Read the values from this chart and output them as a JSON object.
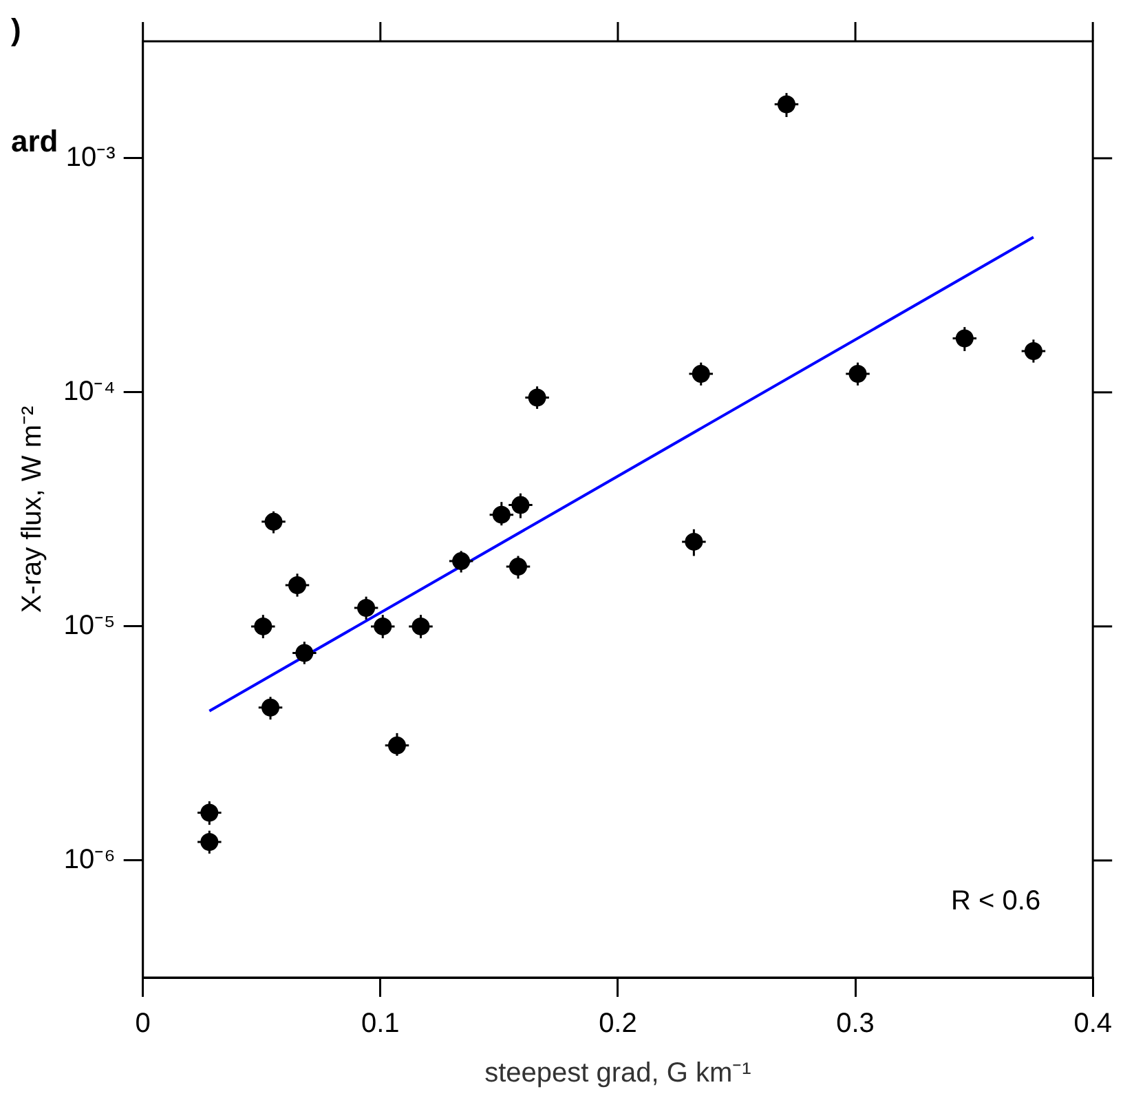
{
  "chart_data": {
    "type": "scatter",
    "xlabel": "steepest grad, G km⁻¹",
    "ylabel": "X-ray flux, W m⁻²",
    "annotations": [
      "R < 0.6",
      ")",
      "ard"
    ],
    "log": "y",
    "grid": false,
    "legend": false,
    "xlim": [
      0,
      0.4
    ],
    "xticks": [
      0,
      0.1,
      0.2,
      0.3,
      0.4
    ],
    "ylim": [
      3.16e-07,
      0.00316
    ],
    "yticks": [
      {
        "value": 1e-06,
        "label": "10⁻⁶"
      },
      {
        "value": 1e-05,
        "label": "10⁻⁵"
      },
      {
        "value": 0.0001,
        "label": "10⁻⁴"
      },
      {
        "value": 0.001,
        "label": "10⁻³"
      }
    ],
    "series": [
      {
        "type": "scatter",
        "marker": "circle",
        "color": "#000000",
        "x": [
          0.028,
          0.028,
          0.0506,
          0.0537,
          0.055,
          0.065,
          0.068,
          0.094,
          0.101,
          0.107,
          0.117,
          0.134,
          0.151,
          0.158,
          0.159,
          0.166,
          0.232,
          0.235,
          0.271,
          0.301,
          0.346,
          0.375
        ],
        "values": [
          1.6e-06,
          1.2e-06,
          1e-05,
          4.5e-06,
          2.8e-05,
          1.5e-05,
          7.7e-06,
          1.2e-05,
          1e-05,
          3.1e-06,
          1e-05,
          1.9e-05,
          3e-05,
          1.8e-05,
          3.3e-05,
          9.5e-05,
          2.3e-05,
          0.00012,
          0.0017,
          0.00012,
          0.00017,
          0.00015
        ],
        "errors": [
          [
            1.42e-06,
            1.79e-06
          ],
          [
            1.07e-06,
            1.34e-06
          ],
          [
            8.9e-06,
            1.12e-05
          ],
          [
            4e-06,
            5e-06
          ],
          [
            2.5e-05,
            3.1e-05
          ],
          [
            1.34e-05,
            1.68e-05
          ],
          [
            6.9e-06,
            8.6e-06
          ],
          [
            1.07e-05,
            1.34e-05
          ],
          [
            8.9e-06,
            1.12e-05
          ],
          [
            2.8e-06,
            3.5e-06
          ],
          [
            8.9e-06,
            1.12e-05
          ],
          [
            1.7e-05,
            2.1e-05
          ],
          [
            2.7e-05,
            3.4e-05
          ],
          [
            1.6e-05,
            2e-05
          ],
          [
            2.9e-05,
            3.7e-05
          ],
          [
            8.5e-05,
            0.000106
          ],
          [
            2e-05,
            2.6e-05
          ],
          [
            0.000107,
            0.000134
          ],
          [
            0.0015,
            0.0019
          ],
          [
            0.000107,
            0.000134
          ],
          [
            0.00015,
            0.00019
          ],
          [
            0.000134,
            0.000168
          ]
        ],
        "xerrors": [
          0.005,
          0.005,
          0.005,
          0.005,
          0.005,
          0.005,
          0.005,
          0.005,
          0.005,
          0.005,
          0.005,
          0.005,
          0.005,
          0.005,
          0.005,
          0.005,
          0.005,
          0.005,
          0.005,
          0.005,
          0.005,
          0.005
        ]
      },
      {
        "type": "line",
        "marker": "none",
        "color": "#0000ff",
        "x": [
          0.028,
          0.375
        ],
        "values": [
          4.35e-06,
          0.00046
        ]
      }
    ]
  }
}
